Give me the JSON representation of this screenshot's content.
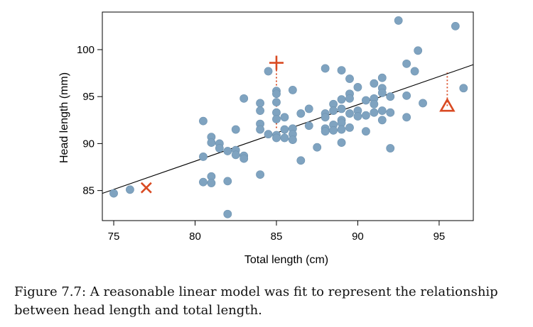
{
  "caption": "Figure 7.7: A reasonable linear model was fit to represent the relationship between head length and total length.",
  "colors": {
    "points": "#7fa3c0",
    "point_edge": "#6f93b0",
    "markers": "#d94a22",
    "line": "#000000"
  },
  "chart_data": {
    "type": "scatter",
    "title": "",
    "xlabel": "Total length (cm)",
    "ylabel": "Head length (mm)",
    "xlim": [
      74.3,
      97.1
    ],
    "ylim": [
      81.8,
      104.0
    ],
    "xticks": [
      75,
      80,
      85,
      90,
      95
    ],
    "yticks": [
      85,
      90,
      95,
      100
    ],
    "grid": false,
    "legend": "none",
    "points": [
      [
        75.0,
        84.7
      ],
      [
        76.0,
        85.1
      ],
      [
        80.5,
        92.4
      ],
      [
        80.5,
        88.6
      ],
      [
        80.5,
        85.9
      ],
      [
        81.0,
        90.7
      ],
      [
        81.0,
        90.1
      ],
      [
        81.0,
        86.5
      ],
      [
        81.0,
        85.8
      ],
      [
        81.5,
        90.0
      ],
      [
        81.5,
        89.5
      ],
      [
        82.0,
        89.2
      ],
      [
        82.0,
        86.0
      ],
      [
        82.0,
        82.5
      ],
      [
        82.5,
        91.5
      ],
      [
        82.5,
        89.3
      ],
      [
        82.5,
        88.8
      ],
      [
        83.0,
        94.8
      ],
      [
        83.0,
        88.7
      ],
      [
        83.0,
        88.4
      ],
      [
        84.0,
        94.3
      ],
      [
        84.0,
        93.5
      ],
      [
        84.0,
        92.1
      ],
      [
        84.0,
        91.5
      ],
      [
        84.0,
        86.7
      ],
      [
        84.5,
        97.7
      ],
      [
        84.5,
        91.0
      ],
      [
        85.0,
        95.6
      ],
      [
        85.0,
        95.3
      ],
      [
        85.0,
        94.4
      ],
      [
        85.0,
        93.3
      ],
      [
        85.0,
        92.6
      ],
      [
        85.0,
        90.9
      ],
      [
        85.0,
        90.6
      ],
      [
        85.5,
        92.8
      ],
      [
        85.5,
        91.5
      ],
      [
        85.5,
        90.6
      ],
      [
        86.0,
        95.7
      ],
      [
        86.0,
        91.6
      ],
      [
        86.0,
        91.0
      ],
      [
        86.0,
        90.4
      ],
      [
        86.5,
        93.2
      ],
      [
        86.5,
        88.2
      ],
      [
        87.0,
        93.7
      ],
      [
        87.0,
        91.9
      ],
      [
        87.5,
        89.6
      ],
      [
        88.0,
        98.0
      ],
      [
        88.0,
        93.2
      ],
      [
        88.0,
        92.8
      ],
      [
        88.0,
        91.6
      ],
      [
        88.0,
        91.3
      ],
      [
        88.5,
        94.2
      ],
      [
        88.5,
        93.5
      ],
      [
        88.5,
        92.0
      ],
      [
        88.5,
        91.4
      ],
      [
        89.0,
        97.8
      ],
      [
        89.0,
        94.7
      ],
      [
        89.0,
        93.7
      ],
      [
        89.0,
        92.5
      ],
      [
        89.0,
        92.2
      ],
      [
        89.0,
        91.5
      ],
      [
        89.0,
        90.1
      ],
      [
        89.5,
        96.9
      ],
      [
        89.5,
        95.3
      ],
      [
        89.5,
        94.8
      ],
      [
        89.5,
        93.2
      ],
      [
        89.5,
        91.7
      ],
      [
        90.0,
        96.0
      ],
      [
        90.0,
        93.5
      ],
      [
        90.0,
        92.9
      ],
      [
        90.5,
        94.6
      ],
      [
        90.5,
        93.0
      ],
      [
        90.5,
        91.3
      ],
      [
        91.0,
        96.4
      ],
      [
        91.0,
        94.8
      ],
      [
        91.0,
        94.2
      ],
      [
        91.0,
        93.3
      ],
      [
        91.5,
        97.0
      ],
      [
        91.5,
        95.9
      ],
      [
        91.5,
        95.4
      ],
      [
        91.5,
        93.5
      ],
      [
        91.5,
        92.5
      ],
      [
        92.0,
        95.0
      ],
      [
        92.0,
        93.3
      ],
      [
        92.0,
        89.5
      ],
      [
        92.5,
        103.1
      ],
      [
        93.0,
        98.5
      ],
      [
        93.0,
        95.1
      ],
      [
        93.0,
        92.8
      ],
      [
        93.5,
        97.7
      ],
      [
        93.7,
        99.9
      ],
      [
        94.0,
        94.3
      ],
      [
        96.0,
        102.5
      ],
      [
        96.5,
        95.9
      ]
    ],
    "regression_line": {
      "x": [
        74.3,
        97.1
      ],
      "y": [
        84.7,
        98.4
      ]
    },
    "highlighted_points": [
      {
        "marker": "x",
        "x": 77.0,
        "y": 85.3
      },
      {
        "marker": "plus",
        "x": 85.0,
        "y": 98.6
      },
      {
        "marker": "triangle",
        "x": 95.5,
        "y": 94.0
      }
    ],
    "residual_segments": [
      {
        "x": 85.0,
        "y_from": 98.6,
        "y_to": 91.6
      },
      {
        "x": 95.5,
        "y_from": 94.0,
        "y_to": 97.6
      }
    ]
  }
}
